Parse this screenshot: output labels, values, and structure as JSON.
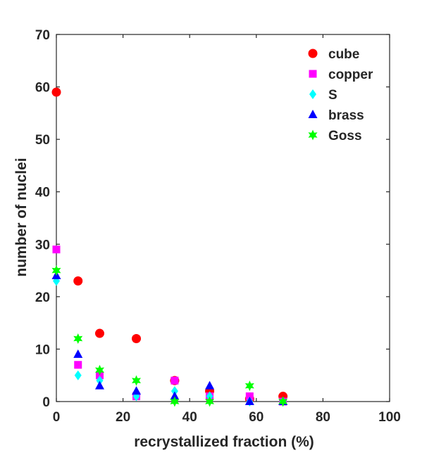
{
  "chart_data": {
    "type": "scatter",
    "title": "",
    "xlabel": "recrystallized fraction (%)",
    "ylabel": "number of nuclei",
    "xlim": [
      0,
      100
    ],
    "ylim": [
      0,
      70
    ],
    "xticks": [
      "0",
      "20",
      "40",
      "60",
      "80",
      "100"
    ],
    "yticks": [
      "0",
      "10",
      "20",
      "30",
      "40",
      "50",
      "60",
      "70"
    ],
    "grid": false,
    "legend_position": "top-right",
    "series": [
      {
        "name": "cube",
        "color": "#ff0000",
        "marker": "circle",
        "x": [
          0,
          6.5,
          13,
          24,
          35.5,
          46,
          58,
          68
        ],
        "y": [
          59,
          23,
          13,
          12,
          4,
          2,
          0.5,
          1
        ]
      },
      {
        "name": "copper",
        "color": "#ff00ff",
        "marker": "square",
        "x": [
          0,
          6.5,
          13,
          24,
          35.5,
          46,
          58,
          68
        ],
        "y": [
          29,
          7,
          5,
          1,
          4,
          1,
          1,
          0
        ]
      },
      {
        "name": "S",
        "color": "#00ffff",
        "marker": "diamond",
        "x": [
          0,
          6.5,
          13,
          24,
          35.5,
          46,
          58,
          68
        ],
        "y": [
          23,
          5,
          4,
          1,
          2,
          1,
          0,
          0
        ]
      },
      {
        "name": "brass",
        "color": "#0000ff",
        "marker": "triangle",
        "x": [
          0,
          6.5,
          13,
          24,
          35.5,
          46,
          58,
          68
        ],
        "y": [
          24,
          9,
          3,
          2,
          1,
          3,
          0,
          0
        ]
      },
      {
        "name": "Goss",
        "color": "#00ff00",
        "marker": "hexagram",
        "x": [
          0,
          6.5,
          13,
          24,
          35.5,
          46,
          58,
          68
        ],
        "y": [
          25,
          12,
          6,
          4,
          0,
          0,
          3,
          0
        ]
      }
    ]
  }
}
